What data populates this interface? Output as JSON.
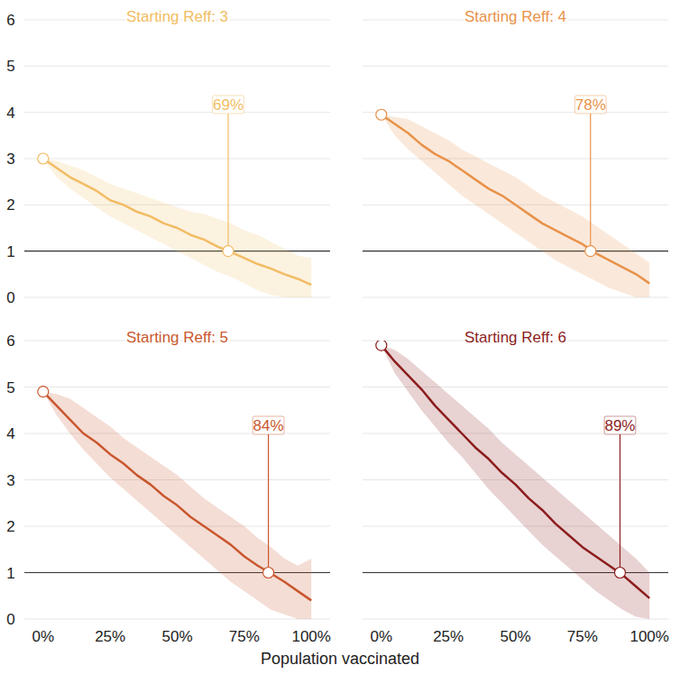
{
  "chart_data": [
    {
      "type": "line",
      "title": "Starting Reff: 3",
      "color": "#f2bc63",
      "tick_labels": "y",
      "grid": true,
      "x": [
        0,
        5,
        10,
        15,
        20,
        25,
        30,
        35,
        40,
        45,
        50,
        55,
        60,
        65,
        70,
        75,
        80,
        85,
        90,
        95,
        100
      ],
      "values": [
        3.0,
        2.8,
        2.6,
        2.45,
        2.3,
        2.1,
        2.0,
        1.85,
        1.75,
        1.6,
        1.5,
        1.35,
        1.25,
        1.1,
        0.98,
        0.85,
        0.72,
        0.62,
        0.5,
        0.4,
        0.27
      ],
      "lower": [
        3.0,
        2.6,
        2.35,
        2.15,
        1.95,
        1.75,
        1.6,
        1.45,
        1.3,
        1.15,
        1.0,
        0.85,
        0.7,
        0.55,
        0.45,
        0.3,
        0.15,
        0.05,
        0.0,
        0.0,
        0.0
      ],
      "upper": [
        3.0,
        2.95,
        2.85,
        2.75,
        2.6,
        2.45,
        2.35,
        2.25,
        2.15,
        2.05,
        1.95,
        1.85,
        1.8,
        1.7,
        1.6,
        1.45,
        1.35,
        1.2,
        1.05,
        0.9,
        0.85
      ],
      "xlim": [
        -7,
        107
      ],
      "ylim": [
        0,
        6
      ],
      "xticks": [
        {
          "value": 0,
          "label": "0%"
        },
        {
          "value": 25,
          "label": "25%"
        },
        {
          "value": 50,
          "label": "50%"
        },
        {
          "value": 75,
          "label": "75%"
        },
        {
          "value": 100,
          "label": "100%"
        }
      ],
      "yticks": [
        0,
        1,
        2,
        3,
        4,
        5,
        6
      ],
      "annotations": [
        {
          "x": 69,
          "y": 1,
          "label": "69%"
        }
      ]
    },
    {
      "type": "line",
      "title": "Starting Reff: 4",
      "color": "#e8924a",
      "tick_labels": false,
      "grid": true,
      "x": [
        0,
        5,
        10,
        15,
        20,
        25,
        30,
        35,
        40,
        45,
        50,
        55,
        60,
        65,
        70,
        75,
        80,
        85,
        90,
        95,
        100
      ],
      "values": [
        3.95,
        3.75,
        3.55,
        3.3,
        3.1,
        2.95,
        2.75,
        2.55,
        2.35,
        2.2,
        2.0,
        1.8,
        1.6,
        1.45,
        1.3,
        1.15,
        0.95,
        0.8,
        0.65,
        0.5,
        0.3
      ],
      "lower": [
        3.95,
        3.5,
        3.2,
        2.95,
        2.7,
        2.45,
        2.2,
        2.0,
        1.8,
        1.6,
        1.4,
        1.2,
        1.0,
        0.8,
        0.65,
        0.5,
        0.35,
        0.2,
        0.1,
        0.0,
        0.0
      ],
      "upper": [
        3.95,
        3.9,
        3.85,
        3.7,
        3.55,
        3.4,
        3.2,
        3.05,
        2.9,
        2.75,
        2.6,
        2.4,
        2.2,
        2.05,
        1.9,
        1.75,
        1.55,
        1.35,
        1.15,
        0.95,
        0.75
      ],
      "xlim": [
        -7,
        107
      ],
      "ylim": [
        0,
        6
      ],
      "xticks": [
        {
          "value": 0,
          "label": "0%"
        },
        {
          "value": 25,
          "label": "25%"
        },
        {
          "value": 50,
          "label": "50%"
        },
        {
          "value": 75,
          "label": "75%"
        },
        {
          "value": 100,
          "label": "100%"
        }
      ],
      "yticks": [
        0,
        1,
        2,
        3,
        4,
        5,
        6
      ],
      "annotations": [
        {
          "x": 78,
          "y": 1,
          "label": "78%"
        }
      ]
    },
    {
      "type": "line",
      "title": "Starting Reff: 5",
      "color": "#c9572e",
      "tick_labels": true,
      "grid": true,
      "xlabel": "Population vaccinated",
      "x": [
        0,
        5,
        10,
        15,
        20,
        25,
        30,
        35,
        40,
        45,
        50,
        55,
        60,
        65,
        70,
        75,
        80,
        85,
        90,
        95,
        100
      ],
      "values": [
        4.9,
        4.6,
        4.3,
        4.0,
        3.8,
        3.55,
        3.35,
        3.1,
        2.9,
        2.65,
        2.45,
        2.2,
        2.0,
        1.8,
        1.6,
        1.35,
        1.15,
        0.98,
        0.8,
        0.6,
        0.4
      ],
      "lower": [
        4.9,
        4.4,
        4.0,
        3.65,
        3.35,
        3.05,
        2.8,
        2.55,
        2.3,
        2.05,
        1.8,
        1.55,
        1.3,
        1.05,
        0.8,
        0.6,
        0.4,
        0.2,
        0.1,
        0.0,
        0.0
      ],
      "upper": [
        4.9,
        4.85,
        4.75,
        4.55,
        4.35,
        4.15,
        3.9,
        3.7,
        3.5,
        3.3,
        3.1,
        2.85,
        2.6,
        2.4,
        2.2,
        2.0,
        1.75,
        1.55,
        1.3,
        1.15,
        1.3
      ],
      "xlim": [
        -7,
        107
      ],
      "ylim": [
        0,
        6
      ],
      "xticks": [
        {
          "value": 0,
          "label": "0%"
        },
        {
          "value": 25,
          "label": "25%"
        },
        {
          "value": 50,
          "label": "50%"
        },
        {
          "value": 75,
          "label": "75%"
        },
        {
          "value": 100,
          "label": "100%"
        }
      ],
      "yticks": [
        0,
        1,
        2,
        3,
        4,
        5,
        6
      ],
      "annotations": [
        {
          "x": 84,
          "y": 1,
          "label": "84%"
        }
      ]
    },
    {
      "type": "line",
      "title": "Starting Reff: 6",
      "color": "#8c1d1d",
      "tick_labels": "x",
      "grid": true,
      "x": [
        0,
        5,
        10,
        15,
        20,
        25,
        30,
        35,
        40,
        45,
        50,
        55,
        60,
        65,
        70,
        75,
        80,
        85,
        90,
        95,
        100
      ],
      "values": [
        5.9,
        5.55,
        5.25,
        4.95,
        4.6,
        4.3,
        4.0,
        3.7,
        3.45,
        3.15,
        2.9,
        2.6,
        2.35,
        2.05,
        1.8,
        1.55,
        1.35,
        1.15,
        0.95,
        0.7,
        0.45
      ],
      "lower": [
        5.9,
        5.3,
        4.9,
        4.5,
        4.15,
        3.8,
        3.5,
        3.15,
        2.8,
        2.5,
        2.2,
        1.9,
        1.6,
        1.35,
        1.1,
        0.85,
        0.6,
        0.4,
        0.2,
        0.05,
        0.0
      ],
      "upper": [
        5.9,
        5.8,
        5.6,
        5.35,
        5.1,
        4.85,
        4.6,
        4.35,
        4.1,
        3.8,
        3.55,
        3.3,
        3.05,
        2.8,
        2.55,
        2.3,
        2.05,
        1.8,
        1.55,
        1.3,
        1.0
      ],
      "xlim": [
        -7,
        107
      ],
      "ylim": [
        0,
        6
      ],
      "xticks": [
        {
          "value": 0,
          "label": "0%"
        },
        {
          "value": 25,
          "label": "25%"
        },
        {
          "value": 50,
          "label": "50%"
        },
        {
          "value": 75,
          "label": "75%"
        },
        {
          "value": 100,
          "label": "100%"
        }
      ],
      "yticks": [
        0,
        1,
        2,
        3,
        4,
        5,
        6
      ],
      "annotations": [
        {
          "x": 89,
          "y": 1,
          "label": "89%"
        }
      ]
    }
  ]
}
